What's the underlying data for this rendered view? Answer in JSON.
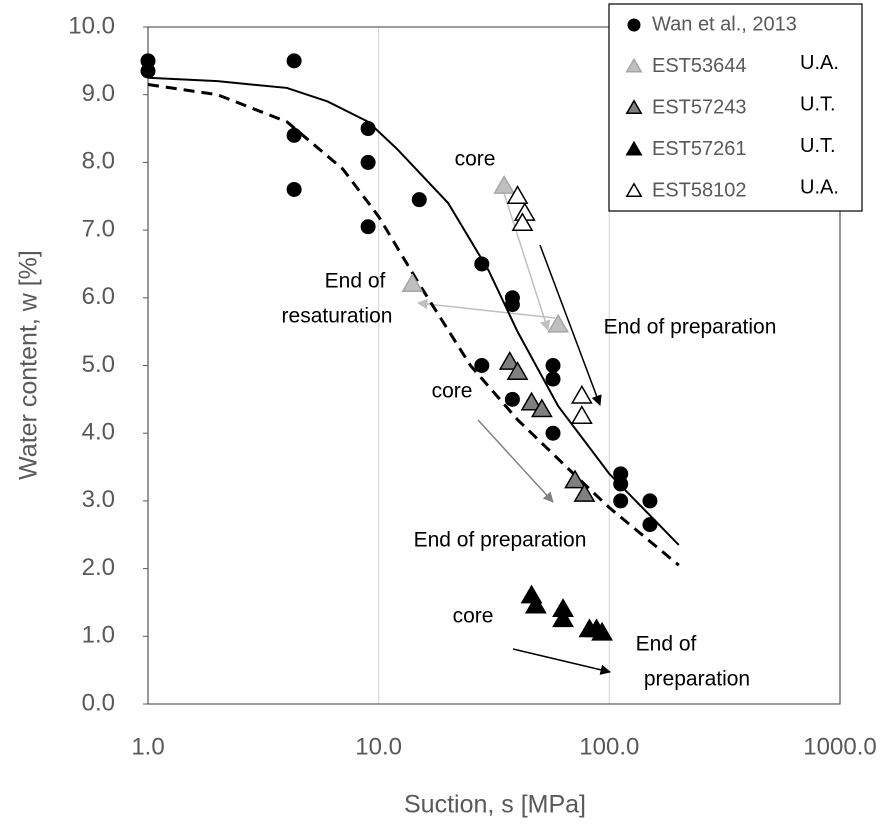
{
  "chart_data": {
    "type": "scatter",
    "xscale": "log",
    "grid": "x",
    "xlabel": "Suction, s [MPa]",
    "ylabel": "Water content, w [%]",
    "xlim": [
      1,
      1000
    ],
    "xticks": [
      {
        "value": 1,
        "label": "1.0"
      },
      {
        "value": 10,
        "label": "10.0"
      },
      {
        "value": 100,
        "label": "100.0"
      },
      {
        "value": 1000,
        "label": "1000.0"
      }
    ],
    "ylim": [
      0,
      10
    ],
    "yticks": [
      {
        "value": 0,
        "label": "0.0"
      },
      {
        "value": 1,
        "label": "1.0"
      },
      {
        "value": 2,
        "label": "2.0"
      },
      {
        "value": 3,
        "label": "3.0"
      },
      {
        "value": 4,
        "label": "4.0"
      },
      {
        "value": 5,
        "label": "5.0"
      },
      {
        "value": 6,
        "label": "6.0"
      },
      {
        "value": 7,
        "label": "7.0"
      },
      {
        "value": 8,
        "label": "8.0"
      },
      {
        "value": 9,
        "label": "9.0"
      },
      {
        "value": 10,
        "label": "10.0"
      }
    ],
    "legend": "upper right",
    "series": [
      {
        "name": "Wan et al., 2013",
        "marker": "circle",
        "color": "#000000",
        "edgecolor": "#000000",
        "x": [
          1,
          1,
          4.3,
          4.3,
          4.3,
          9,
          9,
          9,
          15,
          28,
          38,
          38,
          28,
          38,
          57,
          57,
          57,
          112,
          112,
          112,
          150,
          150
        ],
        "values": [
          9.5,
          9.35,
          9.5,
          8.4,
          7.6,
          8.5,
          8.0,
          7.05,
          7.45,
          6.5,
          6.0,
          5.9,
          5.0,
          4.5,
          5.0,
          4.8,
          4.0,
          3.4,
          3.25,
          3.0,
          3.0,
          2.65
        ]
      },
      {
        "name": "EST53644",
        "tag": "U.A.",
        "marker": "triangle",
        "color": "#bfbfbf",
        "edgecolor": "#a6a6a6",
        "x": [
          35,
          14,
          60
        ],
        "values": [
          7.65,
          6.2,
          5.6
        ]
      },
      {
        "name": "EST57243",
        "tag": "U.T.",
        "marker": "triangle",
        "color": "#808080",
        "edgecolor": "#000000",
        "x": [
          37,
          40,
          46,
          51,
          71,
          78
        ],
        "values": [
          5.05,
          4.9,
          4.45,
          4.35,
          3.3,
          3.1
        ]
      },
      {
        "name": "EST57261",
        "tag": "U.T.",
        "marker": "triangle",
        "color": "#000000",
        "edgecolor": "#000000",
        "x": [
          46,
          48,
          63,
          63,
          82,
          88,
          93
        ],
        "values": [
          1.6,
          1.45,
          1.4,
          1.25,
          1.1,
          1.1,
          1.05
        ]
      },
      {
        "name": "EST58102",
        "tag": "U.A.",
        "marker": "triangle",
        "color": "#ffffff",
        "edgecolor": "#000000",
        "x": [
          40,
          43,
          42,
          76,
          76
        ],
        "values": [
          7.5,
          7.25,
          7.1,
          4.55,
          4.25
        ]
      }
    ],
    "curves": [
      {
        "style": "solid",
        "x": [
          1,
          2,
          4,
          6,
          9,
          12,
          20,
          30,
          40,
          60,
          100,
          200
        ],
        "values": [
          9.25,
          9.2,
          9.1,
          8.9,
          8.6,
          8.2,
          7.4,
          6.4,
          5.5,
          4.4,
          3.4,
          2.35
        ]
      },
      {
        "style": "dashed",
        "x": [
          1,
          2,
          4,
          7,
          10,
          15,
          25,
          40,
          70,
          100,
          200
        ],
        "values": [
          9.15,
          9.0,
          8.6,
          7.9,
          7.2,
          6.2,
          5.0,
          4.2,
          3.4,
          2.9,
          2.05
        ]
      }
    ],
    "annotations": [
      "core",
      "End of",
      "resaturation",
      "End of preparation",
      "core",
      "End of preparation",
      "core",
      "End of",
      "preparation"
    ]
  }
}
